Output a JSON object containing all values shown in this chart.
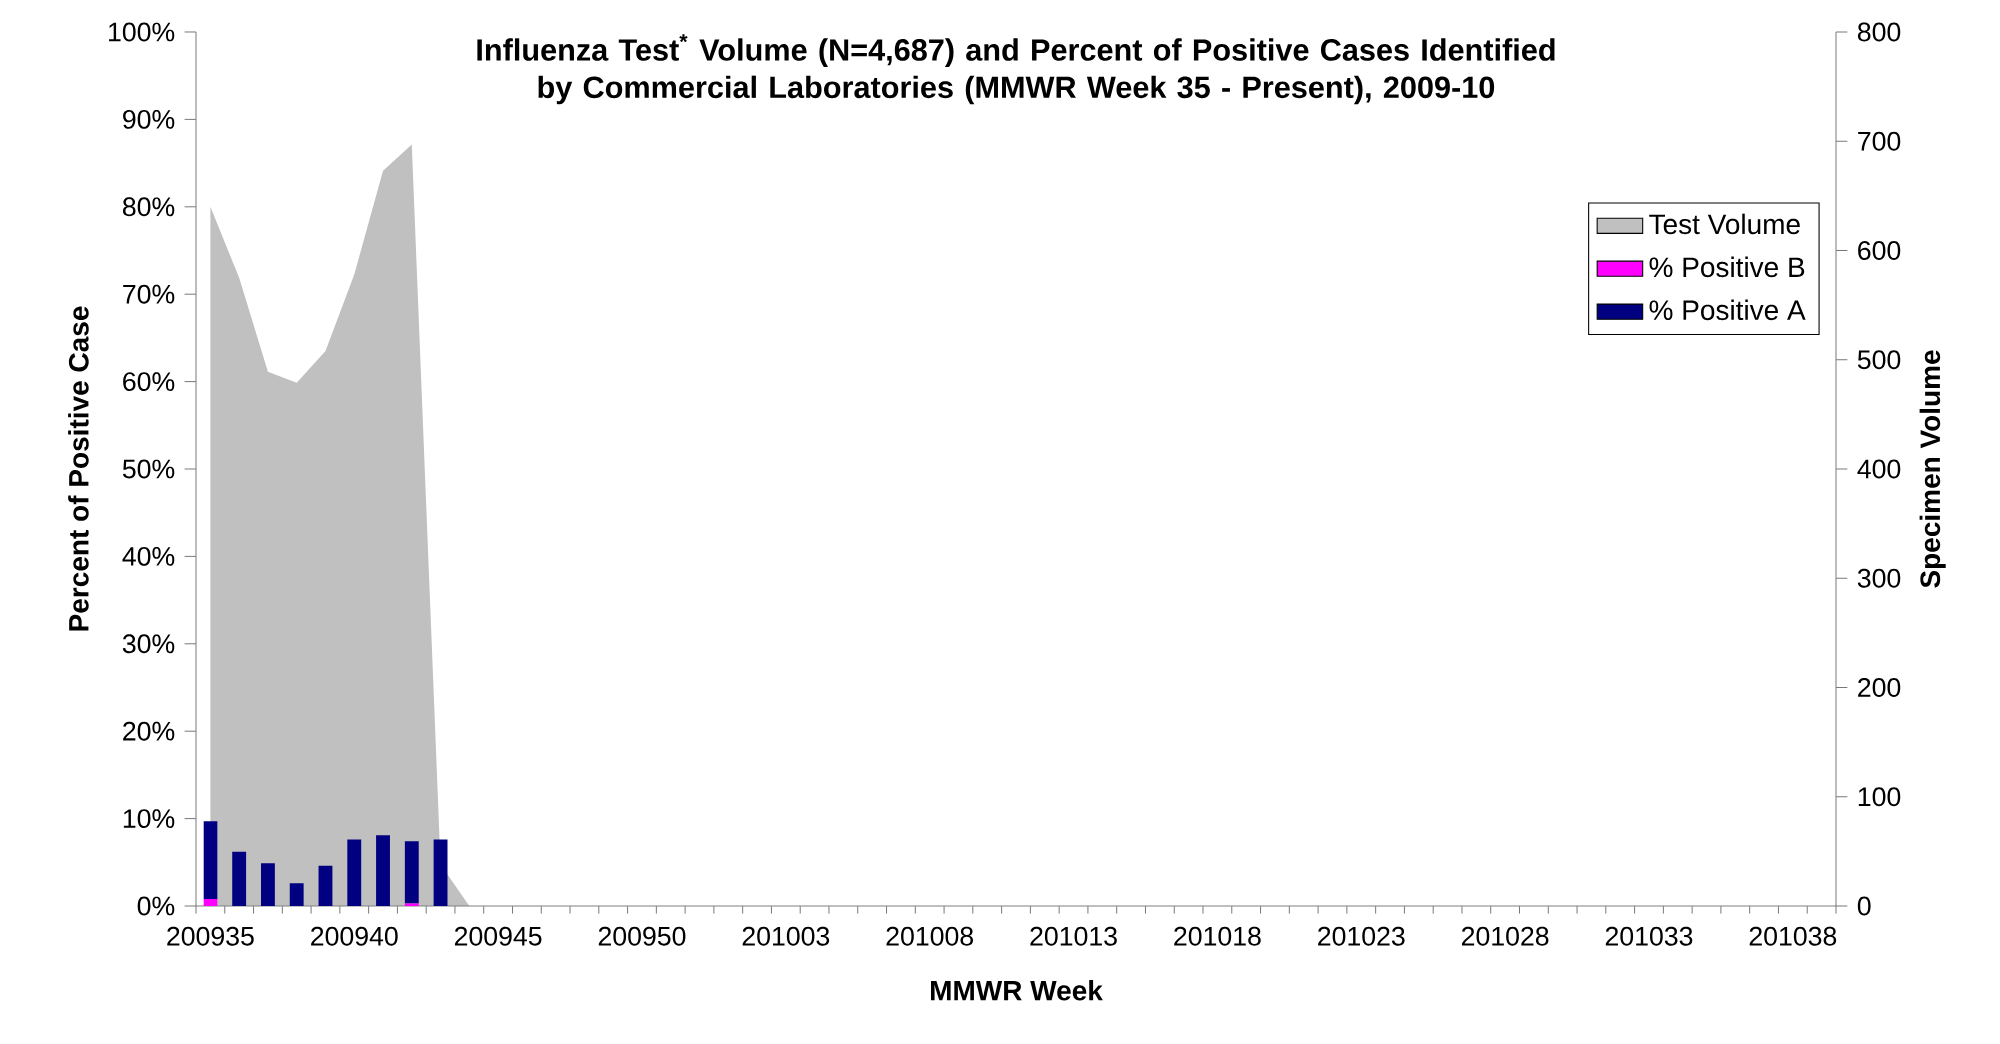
{
  "chart_data": {
    "type": "bar",
    "title": "Influenza Test$^{*}$ Volume (N=4,687) and Percent of Positive Cases Identified by Commercial Laboratories (MMWR Week 35 - Present), 2009-10",
    "xlabel": "MMWR Week",
    "ylabel": "Percent of Positive Case",
    "y2label": "Specimen Volume",
    "categories": [
      "200935",
      null,
      null,
      null,
      null,
      "200940",
      null,
      null,
      null,
      null,
      "200945",
      null,
      null,
      null,
      null,
      "200950",
      null,
      null,
      null,
      null,
      "201003",
      null,
      null,
      null,
      null,
      "201008",
      null,
      null,
      null,
      null,
      "201013",
      null,
      null,
      null,
      null,
      "201018",
      null,
      null,
      null,
      null,
      "201023",
      null,
      null,
      null,
      null,
      "201028",
      null,
      null,
      null,
      null,
      "201033",
      null,
      null,
      null,
      null,
      "201038",
      null
    ],
    "stacked": true,
    "series": [
      {
        "name": "Test Volume",
        "type": "area",
        "axis": "y2",
        "color": "#c0c0c0",
        "values": [
          640,
          575,
          489,
          479,
          508,
          578,
          673,
          697,
          38,
          0,
          null,
          null,
          null,
          null,
          null,
          null,
          null,
          null,
          null,
          null,
          null,
          null,
          null,
          null,
          null,
          null,
          null,
          null,
          null,
          null,
          null,
          null,
          null,
          null,
          null,
          null,
          null,
          null,
          null,
          null,
          null,
          null,
          null,
          null,
          null,
          null,
          null,
          null,
          null,
          null,
          null,
          null,
          null,
          null,
          null,
          null,
          null
        ]
      },
      {
        "name": "% Positive B",
        "type": "bar",
        "color": "#ff00ff",
        "values": [
          0.8,
          0,
          0,
          0,
          0,
          0,
          0,
          0.3,
          0,
          null,
          null,
          null,
          null,
          null,
          null,
          null,
          null,
          null,
          null,
          null,
          null,
          null,
          null,
          null,
          null,
          null,
          null,
          null,
          null,
          null,
          null,
          null,
          null,
          null,
          null,
          null,
          null,
          null,
          null,
          null,
          null,
          null,
          null,
          null,
          null,
          null,
          null,
          null,
          null,
          null,
          null,
          null,
          null,
          null,
          null,
          null,
          null
        ]
      },
      {
        "name": "% Positive A",
        "type": "bar",
        "color": "#000080",
        "values": [
          8.9,
          6.2,
          4.9,
          2.6,
          4.6,
          7.6,
          8.1,
          7.1,
          7.6,
          null,
          null,
          null,
          null,
          null,
          null,
          null,
          null,
          null,
          null,
          null,
          null,
          null,
          null,
          null,
          null,
          null,
          null,
          null,
          null,
          null,
          null,
          null,
          null,
          null,
          null,
          null,
          null,
          null,
          null,
          null,
          null,
          null,
          null,
          null,
          null,
          null,
          null,
          null,
          null,
          null,
          null,
          null,
          null,
          null,
          null,
          null,
          null
        ]
      }
    ],
    "ylim": [
      0,
      100
    ],
    "yticks": [
      {
        "value": 0,
        "label": "0%"
      },
      {
        "value": 10,
        "label": "10%"
      },
      {
        "value": 20,
        "label": "20%"
      },
      {
        "value": 30,
        "label": "30%"
      },
      {
        "value": 40,
        "label": "40%"
      },
      {
        "value": 50,
        "label": "50%"
      },
      {
        "value": 60,
        "label": "60%"
      },
      {
        "value": 70,
        "label": "70%"
      },
      {
        "value": 80,
        "label": "80%"
      },
      {
        "value": 90,
        "label": "90%"
      },
      {
        "value": 100,
        "label": "100%"
      }
    ],
    "y2lim": [
      0,
      800
    ],
    "y2ticks": [
      0,
      100,
      200,
      300,
      400,
      500,
      600,
      700,
      800
    ],
    "legend": "top right"
  }
}
